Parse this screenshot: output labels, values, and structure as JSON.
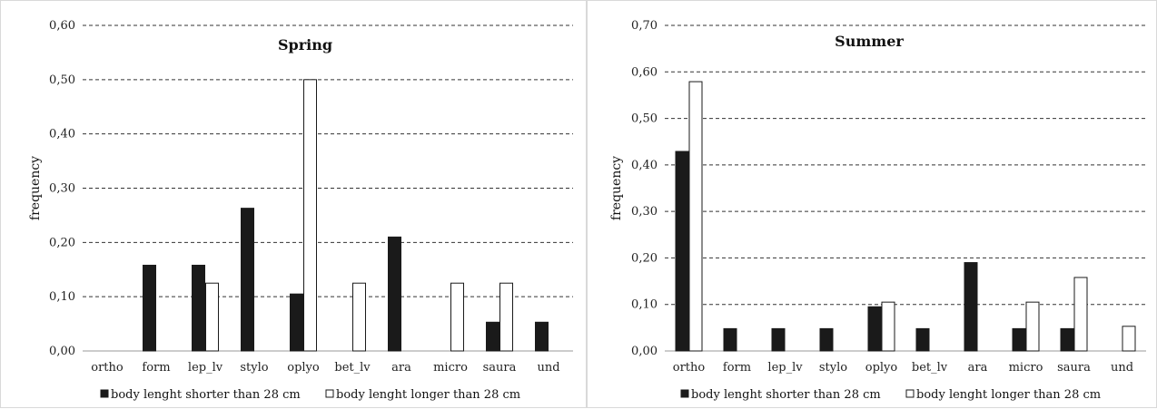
{
  "chart_data": [
    {
      "type": "bar",
      "title": "Spring",
      "ylabel": "frequency",
      "xlabel": "",
      "ylim": [
        0,
        0.6
      ],
      "yticks": [
        "0,00",
        "0,10",
        "0,20",
        "0,30",
        "0,40",
        "0,50",
        "0,60"
      ],
      "ytick_values": [
        0,
        0.1,
        0.2,
        0.3,
        0.4,
        0.5,
        0.6
      ],
      "grid": "dashed-horizontal",
      "legend_position": "bottom",
      "categories": [
        "ortho",
        "form",
        "lep_lv",
        "stylo",
        "oplyo",
        "bet_lv",
        "ara",
        "micro",
        "saura",
        "und"
      ],
      "series": [
        {
          "name": "body lenght shorter than 28 cm",
          "color": "#1a1a1a",
          "values": [
            0,
            0.158,
            0.158,
            0.263,
            0.105,
            0,
            0.21,
            0,
            0.053,
            0.053
          ]
        },
        {
          "name": "body lenght longer than 28 cm",
          "color": "#ffffff",
          "values": [
            0,
            0,
            0.125,
            0,
            0.5,
            0.125,
            0,
            0.125,
            0.125,
            0
          ]
        }
      ]
    },
    {
      "type": "bar",
      "title": "Summer",
      "ylabel": "frequency",
      "xlabel": "",
      "ylim": [
        0,
        0.7
      ],
      "yticks": [
        "0,00",
        "0,10",
        "0,20",
        "0,30",
        "0,40",
        "0,50",
        "0,60",
        "0,70"
      ],
      "ytick_values": [
        0,
        0.1,
        0.2,
        0.3,
        0.4,
        0.5,
        0.6,
        0.7
      ],
      "grid": "dashed-horizontal",
      "legend_position": "bottom",
      "categories": [
        "ortho",
        "form",
        "lep_lv",
        "stylo",
        "oplyo",
        "bet_lv",
        "ara",
        "micro",
        "saura",
        "und"
      ],
      "series": [
        {
          "name": "body lenght shorter than 28 cm",
          "color": "#1a1a1a",
          "values": [
            0.429,
            0.048,
            0.048,
            0.048,
            0.095,
            0.048,
            0.19,
            0.048,
            0.048,
            0
          ]
        },
        {
          "name": "body lenght longer than 28 cm",
          "color": "#ffffff",
          "values": [
            0.579,
            0,
            0,
            0,
            0.105,
            0,
            0,
            0.105,
            0.158,
            0.053
          ]
        }
      ]
    }
  ]
}
